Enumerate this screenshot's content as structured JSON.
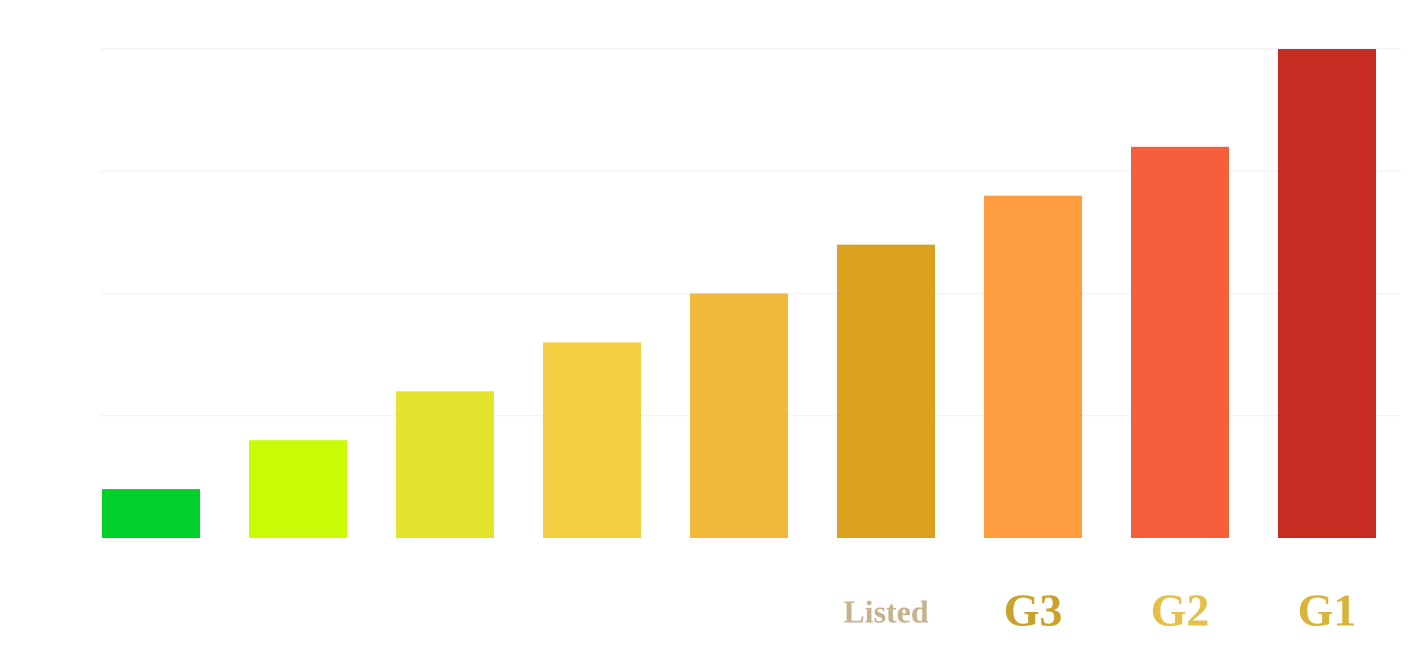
{
  "chart_data": {
    "type": "bar",
    "categories": [
      null,
      null,
      null,
      null,
      null,
      "Listed",
      "G3",
      "G2",
      "G1"
    ],
    "values": [
      1,
      2,
      3,
      4,
      5,
      6,
      7,
      8,
      10
    ],
    "colors": [
      "#00d12a",
      "#c8fc06",
      "#e4e42e",
      "#f5cf42",
      "#f0b939",
      "#dba221",
      "#fd9d40",
      "#f65f3b",
      "#c62c21"
    ],
    "label_colors": [
      null,
      null,
      null,
      null,
      null,
      "#c6b28c",
      "#c9a22b",
      "#e5bf48",
      "#d8b53a"
    ],
    "ylim": [
      0,
      10
    ],
    "grid": true
  }
}
